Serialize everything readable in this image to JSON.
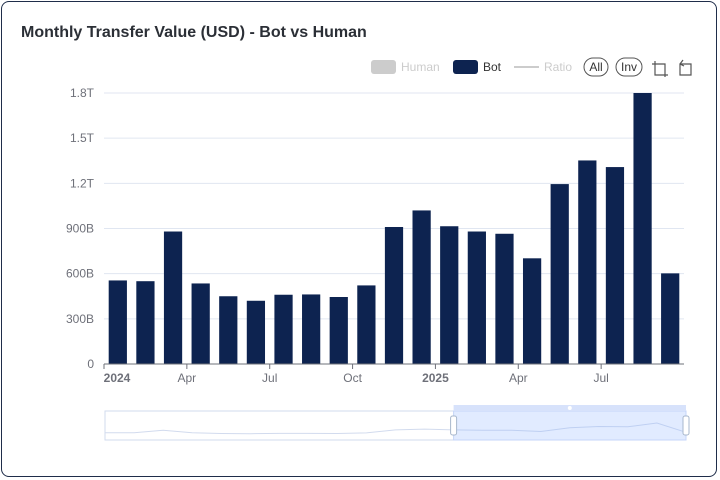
{
  "card": {
    "title": "Monthly Transfer Value (USD) - Bot vs Human"
  },
  "legend": {
    "items": [
      {
        "label": "Human",
        "active": false,
        "color": "#cccccc"
      },
      {
        "label": "Bot",
        "active": true,
        "color": "#0d2350"
      },
      {
        "label": "Ratio",
        "active": false,
        "color": "#cccccc"
      }
    ],
    "buttons": [
      {
        "label": "All"
      },
      {
        "label": "Inv"
      }
    ],
    "tools": [
      {
        "icon": "crop-icon"
      },
      {
        "icon": "reset-zoom-icon"
      }
    ]
  },
  "chart_data": {
    "type": "bar",
    "title": "Monthly Transfer Value (USD) - Bot vs Human",
    "series": [
      {
        "name": "Bot",
        "color": "#0d2350",
        "values": [
          555,
          550,
          880,
          535,
          450,
          420,
          460,
          462,
          445,
          522,
          910,
          1020,
          915,
          880,
          865,
          702,
          1195,
          1352,
          1308,
          1800,
          602
        ]
      }
    ],
    "categories": [
      "2024-01",
      "2024-02",
      "2024-03",
      "2024-04",
      "2024-05",
      "2024-06",
      "2024-07",
      "2024-08",
      "2024-09",
      "2024-10",
      "2024-11",
      "2024-12",
      "2025-01",
      "2025-02",
      "2025-03",
      "2025-04",
      "2025-05",
      "2025-06",
      "2025-07",
      "2025-08",
      "2025-09"
    ],
    "value_unit": "billion USD",
    "ylim": [
      0,
      1800
    ],
    "yticks": [
      {
        "value": 0,
        "label": "0"
      },
      {
        "value": 300,
        "label": "300B"
      },
      {
        "value": 600,
        "label": "600B"
      },
      {
        "value": 900,
        "label": "900B"
      },
      {
        "value": 1200,
        "label": "1.2T"
      },
      {
        "value": 1500,
        "label": "1.5T"
      },
      {
        "value": 1800,
        "label": "1.8T"
      }
    ],
    "xticks": [
      {
        "index": 0,
        "label": "2024",
        "bold": true
      },
      {
        "index": 3,
        "label": "Apr",
        "bold": false
      },
      {
        "index": 6,
        "label": "Jul",
        "bold": false
      },
      {
        "index": 9,
        "label": "Oct",
        "bold": false
      },
      {
        "index": 12,
        "label": "2025",
        "bold": true
      },
      {
        "index": 15,
        "label": "Apr",
        "bold": false
      },
      {
        "index": 18,
        "label": "Jul",
        "bold": false
      }
    ],
    "grid": true,
    "legend_position": "top-right",
    "datazoom": {
      "start": 0.6,
      "end": 1.0
    }
  }
}
